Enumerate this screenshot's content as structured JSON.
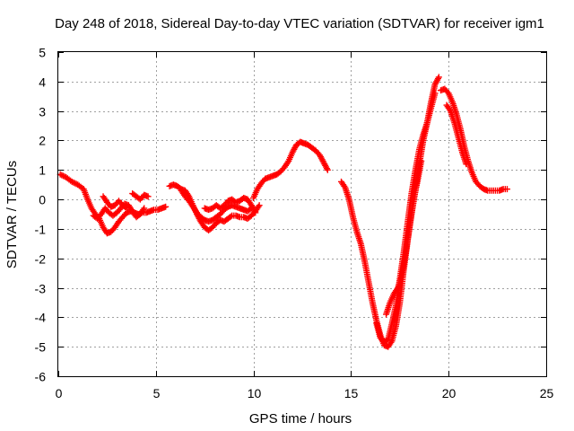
{
  "chart_data": {
    "type": "scatter",
    "title": "Day 248 of 2018, Sidereal Day-to-day VTEC variation (SDTVAR) for receiver igm1",
    "xlabel": "GPS time / hours",
    "ylabel": "SDTVAR / TECUs",
    "xlim": [
      0,
      25
    ],
    "ylim": [
      -6,
      5
    ],
    "xticks": [
      "0",
      "5",
      "10",
      "15",
      "20",
      "25"
    ],
    "yticks": [
      "-6",
      "-5",
      "-4",
      "-3",
      "-2",
      "-1",
      "0",
      "1",
      "2",
      "3",
      "4",
      "5"
    ],
    "grid": true,
    "marker": "+",
    "series": [
      {
        "color": "#ff0000",
        "segments": [
          {
            "x": [
              0.1,
              0.4,
              0.7,
              1.0,
              1.3,
              1.5,
              1.7,
              1.9,
              2.1,
              2.3,
              2.5,
              2.7,
              2.9,
              3.1,
              3.3,
              3.5,
              3.7,
              3.9,
              4.1,
              4.3,
              4.5,
              4.7,
              4.9,
              5.1,
              5.3,
              5.5
            ],
            "y": [
              0.85,
              0.75,
              0.6,
              0.5,
              0.35,
              0.0,
              -0.3,
              -0.5,
              -0.65,
              -0.95,
              -1.15,
              -1.1,
              -0.95,
              -0.75,
              -0.6,
              -0.45,
              -0.4,
              -0.45,
              -0.5,
              -0.45,
              -0.45,
              -0.4,
              -0.35,
              -0.35,
              -0.3,
              -0.25
            ]
          },
          {
            "x": [
              1.8,
              2.0,
              2.2,
              2.4,
              2.6,
              2.8,
              3.0,
              3.2,
              3.4,
              3.6,
              3.8,
              4.0,
              4.2,
              4.4
            ],
            "y": [
              -0.55,
              -0.65,
              -0.5,
              -0.3,
              -0.45,
              -0.55,
              -0.45,
              -0.3,
              -0.15,
              -0.2,
              -0.4,
              -0.6,
              -0.5,
              -0.3
            ]
          },
          {
            "x": [
              2.3,
              2.5,
              2.7,
              2.9,
              3.1,
              3.3,
              3.5
            ],
            "y": [
              0.1,
              -0.1,
              -0.25,
              -0.2,
              -0.05,
              -0.2,
              -0.3
            ]
          },
          {
            "x": [
              3.8,
              4.0,
              4.2,
              4.4,
              4.6
            ],
            "y": [
              0.2,
              0.1,
              0.0,
              0.15,
              0.1
            ]
          },
          {
            "x": [
              5.7,
              5.9,
              6.1,
              6.3,
              6.5,
              6.7,
              6.9,
              7.1,
              7.3,
              7.5,
              7.7,
              7.9,
              8.1,
              8.3,
              8.5,
              8.7,
              8.9,
              9.1,
              9.3,
              9.5,
              9.7,
              9.9,
              10.1,
              10.3
            ],
            "y": [
              0.45,
              0.5,
              0.45,
              0.35,
              0.3,
              0.1,
              -0.2,
              -0.5,
              -0.75,
              -0.95,
              -1.05,
              -0.95,
              -0.8,
              -0.7,
              -0.75,
              -0.65,
              -0.55,
              -0.55,
              -0.6,
              -0.6,
              -0.65,
              -0.55,
              -0.4,
              -0.2
            ]
          },
          {
            "x": [
              6.3,
              6.5,
              6.7,
              6.9,
              7.1,
              7.3,
              7.5,
              7.7,
              7.9,
              8.1,
              8.3,
              8.5,
              8.7,
              8.9,
              9.1,
              9.3,
              9.5,
              9.7,
              9.9
            ],
            "y": [
              0.3,
              0.1,
              -0.05,
              -0.25,
              -0.45,
              -0.6,
              -0.7,
              -0.75,
              -0.7,
              -0.6,
              -0.5,
              -0.35,
              -0.25,
              -0.2,
              -0.25,
              -0.3,
              -0.35,
              -0.4,
              -0.3
            ]
          },
          {
            "x": [
              7.5,
              7.7,
              7.9,
              8.1,
              8.3,
              8.5,
              8.7,
              8.9,
              9.1,
              9.3,
              9.5,
              9.7,
              9.9,
              10.1
            ],
            "y": [
              -0.3,
              -0.35,
              -0.3,
              -0.2,
              -0.3,
              -0.2,
              -0.05,
              0.0,
              -0.1,
              -0.05,
              0.05,
              0.0,
              -0.2,
              -0.45
            ]
          },
          {
            "x": [
              10.0,
              10.2,
              10.4,
              10.6,
              10.8,
              11.0,
              11.2,
              11.4,
              11.6,
              11.8,
              12.0,
              12.2,
              12.4,
              12.6,
              12.8,
              13.0,
              13.2,
              13.4,
              13.6,
              13.8
            ],
            "y": [
              0.05,
              0.35,
              0.55,
              0.7,
              0.75,
              0.8,
              0.85,
              0.95,
              1.1,
              1.3,
              1.6,
              1.85,
              1.95,
              1.9,
              1.85,
              1.75,
              1.65,
              1.5,
              1.25,
              1.0
            ]
          },
          {
            "x": [
              14.5,
              14.7,
              14.9,
              15.1,
              15.3,
              15.5,
              15.7,
              15.9,
              16.1,
              16.3,
              16.5,
              16.7,
              16.9,
              17.1,
              17.3,
              17.5,
              17.7,
              17.9,
              18.1,
              18.3,
              18.5,
              18.7,
              18.9,
              19.1,
              19.3,
              19.5
            ],
            "y": [
              0.6,
              0.4,
              0.0,
              -0.6,
              -1.1,
              -1.5,
              -2.1,
              -2.8,
              -3.5,
              -4.1,
              -4.6,
              -4.95,
              -5.0,
              -4.8,
              -4.3,
              -3.5,
              -2.4,
              -1.4,
              -0.5,
              0.3,
              1.2,
              2.0,
              2.6,
              3.3,
              3.9,
              4.15
            ]
          },
          {
            "x": [
              16.3,
              16.5,
              16.7,
              16.9,
              17.1,
              17.3,
              17.5,
              17.7,
              17.9,
              18.1,
              18.3,
              18.5,
              18.7,
              18.9,
              19.1,
              19.3
            ],
            "y": [
              -4.2,
              -4.7,
              -4.85,
              -4.75,
              -4.2,
              -3.6,
              -2.7,
              -1.8,
              -0.8,
              0.2,
              1.0,
              1.7,
              2.2,
              2.6,
              3.1,
              3.6
            ]
          },
          {
            "x": [
              16.8,
              17.0,
              17.2,
              17.4,
              17.6,
              17.8,
              18.0,
              18.2,
              18.4,
              18.6
            ],
            "y": [
              -3.9,
              -3.5,
              -3.2,
              -3.0,
              -2.6,
              -1.8,
              -0.9,
              0.0,
              0.6,
              1.3
            ]
          },
          {
            "x": [
              19.6,
              19.8,
              20.0,
              20.2,
              20.4,
              20.6,
              20.8,
              21.0,
              21.2,
              21.4,
              21.6,
              21.8,
              22.0,
              22.2,
              22.4,
              22.6,
              22.8,
              23.0
            ],
            "y": [
              3.7,
              3.75,
              3.6,
              3.3,
              2.9,
              2.4,
              1.8,
              1.3,
              0.9,
              0.6,
              0.45,
              0.35,
              0.3,
              0.3,
              0.3,
              0.3,
              0.35,
              0.35
            ]
          },
          {
            "x": [
              19.9,
              20.1,
              20.3,
              20.5,
              20.7,
              20.9
            ],
            "y": [
              3.2,
              3.0,
              2.6,
              2.1,
              1.6,
              1.2
            ]
          }
        ]
      }
    ]
  }
}
